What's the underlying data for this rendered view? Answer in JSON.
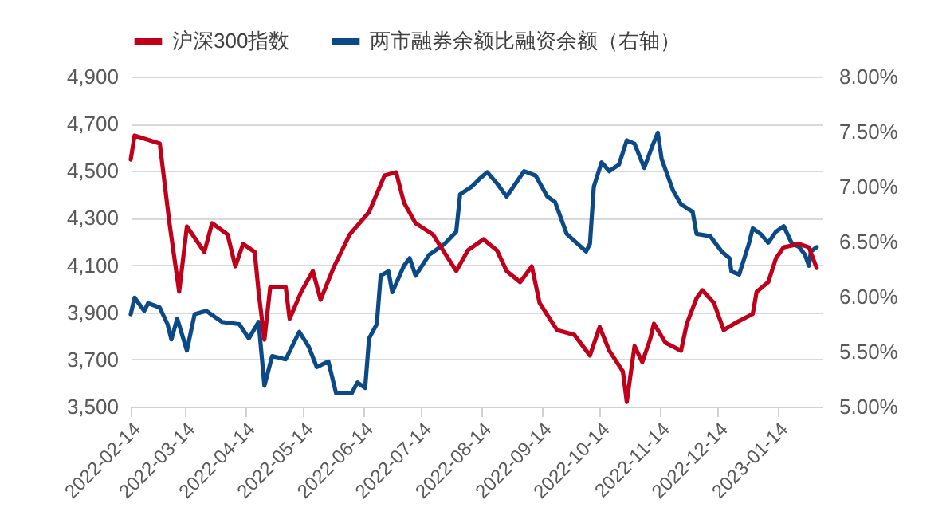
{
  "chart_data": {
    "type": "line",
    "series": [
      {
        "name": "沪深300指数",
        "color": "#c0001a",
        "axis": "y",
        "x": [
          "2022-02-14",
          "2022-02-16",
          "2022-03-01",
          "2022-03-06",
          "2022-03-11",
          "2022-03-15",
          "2022-03-24",
          "2022-03-28",
          "2022-04-05",
          "2022-04-09",
          "2022-04-13",
          "2022-04-19",
          "2022-04-21",
          "2022-04-24",
          "2022-04-27",
          "2022-05-05",
          "2022-05-07",
          "2022-05-13",
          "2022-05-19",
          "2022-05-23",
          "2022-05-30",
          "2022-06-07",
          "2022-06-17",
          "2022-06-25",
          "2022-07-01",
          "2022-07-05",
          "2022-07-11",
          "2022-07-20",
          "2022-08-01",
          "2022-08-07",
          "2022-08-15",
          "2022-08-22",
          "2022-08-27",
          "2022-09-03",
          "2022-09-09",
          "2022-09-13",
          "2022-09-22",
          "2022-10-01",
          "2022-10-09",
          "2022-10-14",
          "2022-10-19",
          "2022-10-26",
          "2022-10-28",
          "2022-11-01",
          "2022-11-05",
          "2022-11-09",
          "2022-11-11",
          "2022-11-17",
          "2022-11-25",
          "2022-11-28",
          "2022-12-03",
          "2022-12-06",
          "2022-12-12",
          "2022-12-17",
          "2022-12-24",
          "2023-01-01",
          "2023-01-03",
          "2023-01-09",
          "2023-01-13",
          "2023-01-17",
          "2023-01-25",
          "2023-01-30",
          "2023-02-03"
        ],
        "values": [
          4548,
          4650,
          4616,
          4278,
          3987,
          4264,
          4156,
          4278,
          4230,
          4095,
          4190,
          4156,
          3987,
          3784,
          4007,
          4007,
          3872,
          3987,
          4075,
          3953,
          4095,
          4230,
          4325,
          4481,
          4494,
          4366,
          4278,
          4230,
          4075,
          4163,
          4210,
          4163,
          4075,
          4028,
          4095,
          3940,
          3825,
          3804,
          3717,
          3838,
          3737,
          3649,
          3520,
          3757,
          3689,
          3784,
          3852,
          3771,
          3737,
          3852,
          3960,
          3994,
          3940,
          3825,
          3859,
          3893,
          3987,
          4028,
          4129,
          4176,
          4190,
          4176,
          4088
        ]
      },
      {
        "name": "两市融券余额比融资余额（右轴）",
        "color": "#0b4a86",
        "axis": "y2",
        "x": [
          "2022-02-14",
          "2022-02-16",
          "2022-02-21",
          "2022-02-23",
          "2022-03-01",
          "2022-03-05",
          "2022-03-07",
          "2022-03-10",
          "2022-03-15",
          "2022-03-19",
          "2022-03-25",
          "2022-04-02",
          "2022-04-11",
          "2022-04-16",
          "2022-04-21",
          "2022-04-24",
          "2022-04-28",
          "2022-05-05",
          "2022-05-12",
          "2022-05-17",
          "2022-05-21",
          "2022-05-27",
          "2022-05-31",
          "2022-06-08",
          "2022-06-11",
          "2022-06-15",
          "2022-06-17",
          "2022-06-21",
          "2022-06-23",
          "2022-06-27",
          "2022-06-29",
          "2022-07-05",
          "2022-07-08",
          "2022-07-11",
          "2022-07-18",
          "2022-07-26",
          "2022-08-01",
          "2022-08-03",
          "2022-08-09",
          "2022-08-13",
          "2022-08-17",
          "2022-08-22",
          "2022-08-27",
          "2022-09-05",
          "2022-09-11",
          "2022-09-17",
          "2022-09-21",
          "2022-09-27",
          "2022-10-07",
          "2022-10-09",
          "2022-10-11",
          "2022-10-15",
          "2022-10-19",
          "2022-10-24",
          "2022-10-28",
          "2022-11-01",
          "2022-11-06",
          "2022-11-10",
          "2022-11-13",
          "2022-11-15",
          "2022-11-21",
          "2022-11-25",
          "2022-12-01",
          "2022-12-03",
          "2022-12-10",
          "2022-12-16",
          "2022-12-20",
          "2022-12-21",
          "2022-12-25",
          "2022-12-30",
          "2023-01-01",
          "2023-01-05",
          "2023-01-09",
          "2023-01-13",
          "2023-01-17",
          "2023-01-21",
          "2023-01-25",
          "2023-01-28",
          "2023-01-30",
          "2023-01-31",
          "2023-02-03"
        ],
        "values": [
          5.84,
          5.99,
          5.87,
          5.94,
          5.9,
          5.75,
          5.61,
          5.8,
          5.51,
          5.84,
          5.87,
          5.77,
          5.75,
          5.62,
          5.77,
          5.19,
          5.46,
          5.43,
          5.68,
          5.54,
          5.36,
          5.41,
          5.12,
          5.12,
          5.22,
          5.17,
          5.62,
          5.75,
          6.19,
          6.23,
          6.04,
          6.28,
          6.35,
          6.19,
          6.38,
          6.48,
          6.59,
          6.93,
          7.0,
          7.07,
          7.13,
          7.03,
          6.91,
          7.14,
          7.1,
          6.91,
          6.86,
          6.57,
          6.41,
          6.48,
          7.0,
          7.22,
          7.14,
          7.2,
          7.42,
          7.39,
          7.17,
          7.36,
          7.49,
          7.25,
          6.96,
          6.84,
          6.77,
          6.57,
          6.55,
          6.41,
          6.35,
          6.23,
          6.2,
          6.48,
          6.62,
          6.57,
          6.49,
          6.59,
          6.64,
          6.49,
          6.45,
          6.38,
          6.28,
          6.41,
          6.45
        ]
      }
    ],
    "xlim": [
      "2022-02-14",
      "2023-02-06"
    ],
    "xticks": [
      "2022-02-14",
      "2022-03-14",
      "2022-04-14",
      "2022-05-14",
      "2022-06-14",
      "2022-07-14",
      "2022-08-14",
      "2022-09-14",
      "2022-10-14",
      "2022-11-14",
      "2022-12-14",
      "2023-01-14"
    ],
    "ylim": [
      3500,
      4900
    ],
    "yticks": [
      {
        "value": 3500,
        "label": "3,500"
      },
      {
        "value": 3700,
        "label": "3,700"
      },
      {
        "value": 3900,
        "label": "3,900"
      },
      {
        "value": 4100,
        "label": "4,100"
      },
      {
        "value": 4300,
        "label": "4,300"
      },
      {
        "value": 4500,
        "label": "4,500"
      },
      {
        "value": 4700,
        "label": "4,700"
      },
      {
        "value": 4900,
        "label": "4,900"
      }
    ],
    "y2lim": [
      5,
      8
    ],
    "y2ticks": [
      {
        "value": 5,
        "label": "5.00%"
      },
      {
        "value": 5.5,
        "label": "5.50%"
      },
      {
        "value": 6,
        "label": "6.00%"
      },
      {
        "value": 6.5,
        "label": "6.50%"
      },
      {
        "value": 7,
        "label": "7.00%"
      },
      {
        "value": 7.5,
        "label": "7.50%"
      },
      {
        "value": 8,
        "label": "8.00%"
      }
    ],
    "grid": "y",
    "legend": "top",
    "line_style": "solid"
  }
}
